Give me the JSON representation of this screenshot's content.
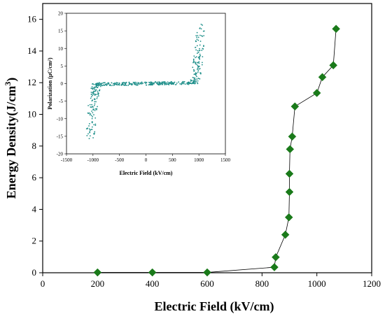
{
  "chart_data": [
    {
      "type": "scatter",
      "title": "",
      "xlabel": "Electric Field (kV/cm)",
      "ylabel_main": "Energy Density(J/cm",
      "ylabel_sup": "3",
      "ylabel_close": ")",
      "xlim": [
        0,
        1200
      ],
      "ylim": [
        0,
        17
      ],
      "x_ticks": [
        0,
        200,
        400,
        600,
        800,
        1000,
        1200
      ],
      "y_ticks": [
        0,
        2,
        4,
        6,
        8,
        10,
        12,
        14,
        16
      ],
      "grid": false,
      "legend": "none",
      "marker": "diamond",
      "marker_color": "#1a7a1a",
      "line_color": "#000000",
      "series": [
        {
          "x": [
            200,
            400,
            600,
            845,
            850,
            885,
            898,
            900,
            900,
            902,
            910,
            920,
            1000,
            1020,
            1060,
            1070
          ],
          "y": [
            0.02,
            0.02,
            0.02,
            0.35,
            0.98,
            2.4,
            3.5,
            5.1,
            6.25,
            7.8,
            8.6,
            10.5,
            11.35,
            12.35,
            13.1,
            15.4
          ]
        }
      ]
    },
    {
      "type": "scatter",
      "title": "",
      "xlabel": "Electric Field (kV/cm)",
      "ylabel": "Polarization (μC/cm²)",
      "xlim": [
        -1500,
        1500
      ],
      "ylim": [
        -20,
        20
      ],
      "x_ticks": [
        -1500,
        -1000,
        -500,
        0,
        500,
        1000,
        1500
      ],
      "y_ticks": [
        -20,
        -15,
        -10,
        -5,
        0,
        5,
        10,
        15,
        20
      ],
      "grid": false,
      "legend": "none",
      "marker_color": "#1f8f8a",
      "curve_description": "hysteresis-like P-E loop: near 0 between -900 and 850 kV/cm, steep rise near +900 to +1100 kV/cm reaching about 17, steep fall near -900 to -1100 kV/cm reaching about -16"
    }
  ]
}
